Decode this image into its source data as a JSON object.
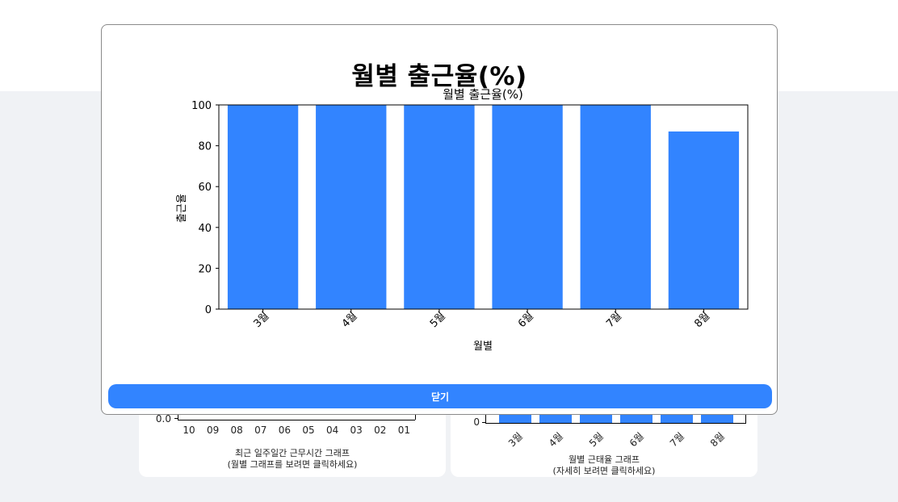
{
  "modal": {
    "title": "월별 출근율(%)",
    "close_label": "닫기"
  },
  "chart_data": [
    {
      "type": "bar",
      "title": "월별 출근율(%)",
      "xlabel": "월별",
      "ylabel": "출근율",
      "categories": [
        "3월",
        "4월",
        "5월",
        "6월",
        "7월",
        "8월"
      ],
      "values": [
        100,
        100,
        100,
        100,
        100,
        87
      ],
      "ylim": [
        0,
        100
      ],
      "yticks": [
        0,
        20,
        40,
        60,
        80,
        100
      ],
      "color": "#3284ff"
    }
  ],
  "background": {
    "left_card": {
      "y_tick_label": "0.0",
      "x_labels": [
        "10",
        "09",
        "08",
        "07",
        "06",
        "05",
        "04",
        "03",
        "02",
        "01"
      ],
      "caption_line1": "최근 일주일간 근무시간 그래프",
      "caption_line2": "(월별 그래프를 보려면 클릭하세요)"
    },
    "right_card": {
      "y_tick_label": "0",
      "x_labels": [
        "3월",
        "4월",
        "5월",
        "6월",
        "7월",
        "8월"
      ],
      "caption_line1": "월별 근태율 그래프",
      "caption_line2": "(자세히 보려면 클릭하세요)",
      "bar_color": "#3284ff"
    }
  }
}
